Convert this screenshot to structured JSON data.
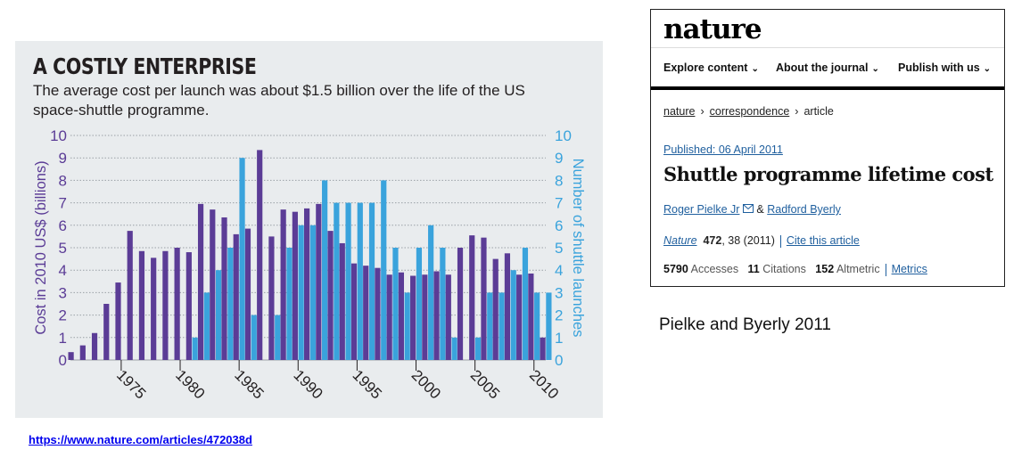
{
  "chart_panel": {
    "title": "A COSTLY ENTERPRISE",
    "subtitle": "The average cost per launch was about $1.5 billion over the life of the US space-shuttle programme."
  },
  "chart_data": {
    "type": "bar",
    "title": "A COSTLY ENTERPRISE",
    "subtitle": "The average cost per launch was about $1.5 billion over the life of the US space-shuttle programme.",
    "ylabel": "Cost in 2010 US$ (billions)",
    "y2label": "Number of shuttle launches",
    "ylim": [
      0,
      10
    ],
    "y2lim": [
      0,
      10
    ],
    "yticks": [
      "0",
      "1",
      "2",
      "3",
      "4",
      "5",
      "6",
      "7",
      "8",
      "9",
      "10"
    ],
    "xticks": [
      "1975",
      "1980",
      "1985",
      "1990",
      "1995",
      "2000",
      "2005",
      "2010"
    ],
    "x": [
      1971,
      1972,
      1973,
      1974,
      1975,
      1976,
      1977,
      1978,
      1979,
      1980,
      1981,
      1982,
      1983,
      1984,
      1985,
      1986,
      1987,
      1988,
      1989,
      1990,
      1991,
      1992,
      1993,
      1994,
      1995,
      1996,
      1997,
      1998,
      1999,
      2000,
      2001,
      2002,
      2003,
      2004,
      2005,
      2006,
      2007,
      2008,
      2009,
      2010,
      2011
    ],
    "series": [
      {
        "name": "Cost in 2010 US$ (billions)",
        "axis": "left",
        "color": "#5b3c96",
        "values": [
          0.35,
          0.65,
          1.2,
          2.5,
          3.45,
          5.75,
          4.85,
          4.55,
          4.85,
          5.0,
          4.8,
          6.95,
          6.7,
          6.35,
          5.6,
          5.85,
          9.35,
          5.5,
          6.7,
          6.6,
          6.75,
          6.95,
          5.75,
          5.2,
          4.3,
          4.2,
          4.1,
          3.8,
          3.9,
          3.75,
          3.8,
          3.95,
          3.8,
          5.0,
          5.55,
          5.45,
          4.5,
          4.75,
          3.8,
          3.85,
          1.0
        ]
      },
      {
        "name": "Number of shuttle launches",
        "axis": "right",
        "color": "#3aa3dc",
        "values": [
          0,
          0,
          0,
          0,
          0,
          0,
          0,
          0,
          0,
          0,
          1,
          3,
          4,
          5,
          9,
          2,
          0,
          2,
          5,
          6,
          6,
          8,
          7,
          7,
          7,
          7,
          8,
          5,
          3,
          5,
          6,
          5,
          1,
          0,
          1,
          3,
          3,
          4,
          5,
          3,
          3
        ]
      }
    ]
  },
  "source": {
    "url": "https://www.nature.com/articles/472038d"
  },
  "nature": {
    "logo": "nature",
    "nav": [
      {
        "label": "Explore content"
      },
      {
        "label": "About the journal"
      },
      {
        "label": "Publish with us"
      }
    ],
    "breadcrumb": {
      "item1": "nature",
      "item2": "correspondence",
      "item3": "article"
    },
    "published": "Published: 06 April 2011",
    "title": "Shuttle programme lifetime cost",
    "authors": {
      "a1": "Roger Pielke Jr",
      "amp": "&",
      "a2": "Radford Byerly"
    },
    "citation": {
      "journal": "Nature",
      "volume": "472",
      "pages": ", 38 (2011)",
      "cite": "Cite this article"
    },
    "metrics": {
      "accesses_num": "5790",
      "accesses_label": "Accesses",
      "citations_num": "11",
      "citations_label": "Citations",
      "altmetric_num": "152",
      "altmetric_label": "Altmetric",
      "metrics_link": "Metrics"
    }
  },
  "caption": "Pielke and Byerly 2011",
  "colors": {
    "cost": "#5b3c96",
    "launches": "#3aa3dc",
    "panel_bg": "#e9ecee",
    "link": "#1f5f9e"
  }
}
